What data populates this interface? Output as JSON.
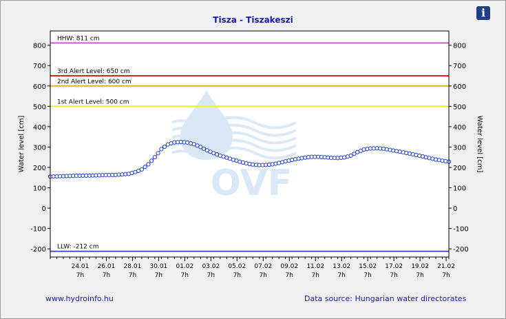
{
  "info_icon": "info-icon",
  "footer": {
    "site": "www.hydroinfo.hu",
    "source": "Data source: Hungarian water directorates"
  },
  "chart_data": {
    "type": "line",
    "title": "Tisza - Tiszakeszi",
    "ylabel": "Water level [cm]",
    "ylabel_right": "Water level [cm]",
    "ylim": [
      -240,
      870
    ],
    "yticks": [
      -200,
      -100,
      0,
      100,
      200,
      300,
      400,
      500,
      600,
      700,
      800
    ],
    "xlim": [
      "2025-01-22T00:00",
      "2025-02-21T12:00"
    ],
    "xticks": [
      {
        "t": "2025-01-24T07:00",
        "date": "24.01",
        "hour": "7h"
      },
      {
        "t": "2025-01-26T07:00",
        "date": "26.01",
        "hour": "7h"
      },
      {
        "t": "2025-01-28T07:00",
        "date": "28.01",
        "hour": "7h"
      },
      {
        "t": "2025-01-30T07:00",
        "date": "30.01",
        "hour": "7h"
      },
      {
        "t": "2025-02-01T07:00",
        "date": "01.02",
        "hour": "7h"
      },
      {
        "t": "2025-02-03T07:00",
        "date": "03.02",
        "hour": "7h"
      },
      {
        "t": "2025-02-05T07:00",
        "date": "05.02",
        "hour": "7h"
      },
      {
        "t": "2025-02-07T07:00",
        "date": "07.02",
        "hour": "7h"
      },
      {
        "t": "2025-02-09T07:00",
        "date": "09.02",
        "hour": "7h"
      },
      {
        "t": "2025-02-11T07:00",
        "date": "11.02",
        "hour": "7h"
      },
      {
        "t": "2025-02-13T07:00",
        "date": "13.02",
        "hour": "7h"
      },
      {
        "t": "2025-02-15T07:00",
        "date": "15.02",
        "hour": "7h"
      },
      {
        "t": "2025-02-17T07:00",
        "date": "17.02",
        "hour": "7h"
      },
      {
        "t": "2025-02-19T07:00",
        "date": "19.02",
        "hour": "7h"
      },
      {
        "t": "2025-02-21T07:00",
        "date": "21.02",
        "hour": "7h"
      }
    ],
    "reference_lines": [
      {
        "label": "HHW: 811 cm",
        "value": 811,
        "color": "#c060c0"
      },
      {
        "label": "3rd Alert Level: 650 cm",
        "value": 650,
        "color": "#e02020"
      },
      {
        "label": "2nd Alert Level: 600 cm",
        "value": 600,
        "color": "#e0b020"
      },
      {
        "label": "1st Alert Level: 500 cm",
        "value": 500,
        "color": "#f0f020"
      },
      {
        "label": "LLW: -212 cm",
        "value": -212,
        "color": "#5050c0"
      }
    ],
    "series": [
      {
        "color": "#1f3fd0",
        "points": [
          [
            "2025-01-22T00:00",
            155
          ],
          [
            "2025-01-23T00:00",
            157
          ],
          [
            "2025-01-24T00:00",
            159
          ],
          [
            "2025-01-25T00:00",
            160
          ],
          [
            "2025-01-26T00:00",
            162
          ],
          [
            "2025-01-27T00:00",
            163
          ],
          [
            "2025-01-28T00:00",
            168
          ],
          [
            "2025-01-28T12:00",
            177
          ],
          [
            "2025-01-29T00:00",
            190
          ],
          [
            "2025-01-29T12:00",
            215
          ],
          [
            "2025-01-30T00:00",
            250
          ],
          [
            "2025-01-30T12:00",
            290
          ],
          [
            "2025-01-31T00:00",
            313
          ],
          [
            "2025-01-31T12:00",
            323
          ],
          [
            "2025-02-01T00:00",
            325
          ],
          [
            "2025-02-01T12:00",
            322
          ],
          [
            "2025-02-02T00:00",
            314
          ],
          [
            "2025-02-02T12:00",
            300
          ],
          [
            "2025-02-03T00:00",
            284
          ],
          [
            "2025-02-03T12:00",
            270
          ],
          [
            "2025-02-04T00:00",
            258
          ],
          [
            "2025-02-04T12:00",
            248
          ],
          [
            "2025-02-05T00:00",
            238
          ],
          [
            "2025-02-05T12:00",
            228
          ],
          [
            "2025-02-06T00:00",
            220
          ],
          [
            "2025-02-06T12:00",
            214
          ],
          [
            "2025-02-07T00:00",
            211
          ],
          [
            "2025-02-07T12:00",
            212
          ],
          [
            "2025-02-08T00:00",
            215
          ],
          [
            "2025-02-08T12:00",
            222
          ],
          [
            "2025-02-09T00:00",
            230
          ],
          [
            "2025-02-09T12:00",
            237
          ],
          [
            "2025-02-10T00:00",
            243
          ],
          [
            "2025-02-10T12:00",
            248
          ],
          [
            "2025-02-11T00:00",
            252
          ],
          [
            "2025-02-11T12:00",
            252
          ],
          [
            "2025-02-12T00:00",
            250
          ],
          [
            "2025-02-12T12:00",
            247
          ],
          [
            "2025-02-13T00:00",
            246
          ],
          [
            "2025-02-13T12:00",
            249
          ],
          [
            "2025-02-14T00:00",
            258
          ],
          [
            "2025-02-14T12:00",
            275
          ],
          [
            "2025-02-15T00:00",
            288
          ],
          [
            "2025-02-15T12:00",
            293
          ],
          [
            "2025-02-16T00:00",
            294
          ],
          [
            "2025-02-16T12:00",
            292
          ],
          [
            "2025-02-17T00:00",
            286
          ],
          [
            "2025-02-17T12:00",
            280
          ],
          [
            "2025-02-18T00:00",
            274
          ],
          [
            "2025-02-18T12:00",
            268
          ],
          [
            "2025-02-19T00:00",
            261
          ],
          [
            "2025-02-19T12:00",
            254
          ],
          [
            "2025-02-20T00:00",
            246
          ],
          [
            "2025-02-20T12:00",
            239
          ],
          [
            "2025-02-21T00:00",
            233
          ],
          [
            "2025-02-21T12:00",
            228
          ]
        ]
      }
    ],
    "watermark": "OVF",
    "grid": false
  }
}
